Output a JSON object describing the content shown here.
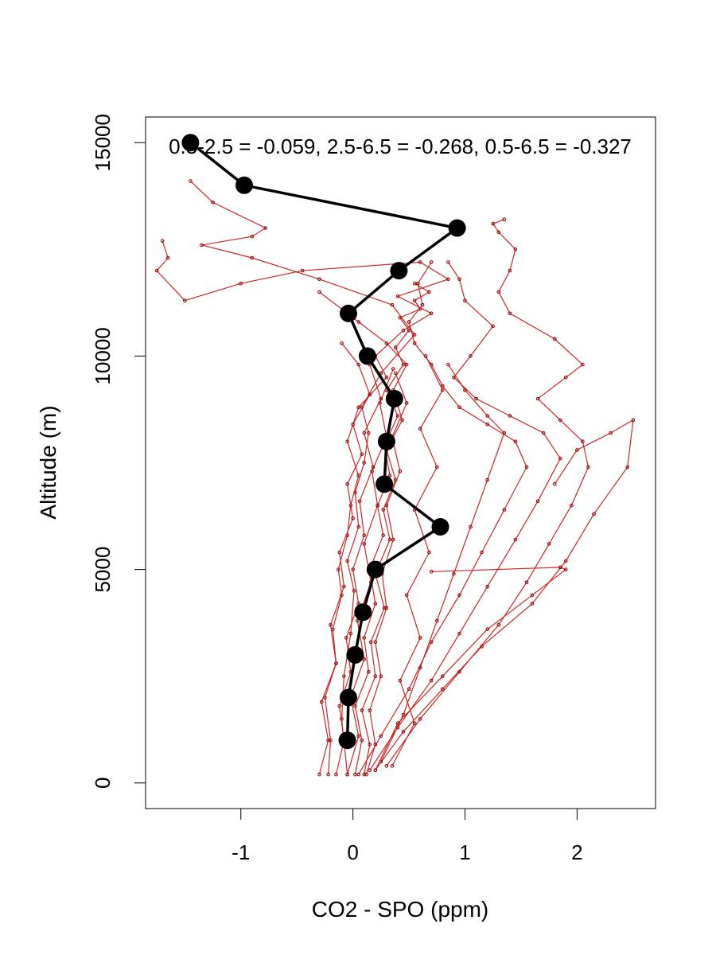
{
  "chart_data": {
    "type": "line",
    "title": "",
    "annotation": "0.5-2.5 = -0.059, 2.5-6.5 = -0.268, 0.5-6.5 = -0.327",
    "xlabel": "CO2 - SPO (ppm)",
    "ylabel": "Altitude (m)",
    "xlim": [
      -1.85,
      2.7
    ],
    "ylim": [
      -600,
      15600
    ],
    "xticks": [
      -1,
      0,
      1,
      2
    ],
    "yticks": [
      0,
      5000,
      10000,
      15000
    ],
    "grid": false,
    "colors": {
      "mean_line": "#000000",
      "profiles": "#8b0000",
      "profiles_light": "#cd2626"
    },
    "mean_profile": {
      "name": "",
      "x": [
        -0.05,
        -0.04,
        0.02,
        0.09,
        0.2,
        0.78,
        0.28,
        0.3,
        0.37,
        0.13,
        -0.04,
        0.41,
        0.93,
        -0.97,
        -1.45
      ],
      "y": [
        1000,
        2000,
        3000,
        4000,
        5000,
        6000,
        7000,
        8000,
        9000,
        10000,
        11000,
        12000,
        13000,
        14000,
        15000
      ]
    },
    "profiles": [
      {
        "x": [
          -0.05,
          -0.1,
          -0.08,
          -0.02,
          0.01,
          -0.05,
          0.05,
          0.02,
          0.1,
          0.14,
          0.08,
          0.25,
          0.55,
          0.35,
          -0.3,
          -0.9,
          -1.35,
          -0.9,
          -0.78,
          -1.25,
          -1.45
        ],
        "y": [
          200,
          1500,
          2500,
          3500,
          4500,
          5200,
          6000,
          6800,
          7500,
          8200,
          8800,
          9600,
          10500,
          11200,
          11800,
          12300,
          12600,
          12800,
          13000,
          13600,
          14100
        ]
      },
      {
        "x": [
          -0.22,
          -0.2,
          -0.25,
          -0.15,
          -0.18,
          -0.1,
          -0.13,
          -0.05,
          -0.02,
          0.05,
          -0.05,
          0.05,
          0.3,
          0.2,
          0.45,
          0.7,
          0.4,
          0.85,
          0.6,
          -0.45,
          -1.0,
          -1.5,
          -1.75,
          -1.65,
          -1.7
        ],
        "y": [
          200,
          1000,
          2000,
          2800,
          3600,
          4400,
          5000,
          5800,
          6500,
          7200,
          8000,
          8800,
          9500,
          10000,
          10600,
          11000,
          11400,
          11800,
          12200,
          12000,
          11700,
          11300,
          12000,
          12300,
          12700
        ]
      },
      {
        "x": [
          0.02,
          0.08,
          0.02,
          0.14,
          0.1,
          0.2,
          0.15,
          0.27,
          0.22,
          0.33,
          0.28,
          0.4,
          0.3,
          0.45,
          0.38,
          0.5,
          0.42,
          0.6,
          0.55,
          0.68,
          0.55
        ],
        "y": [
          200,
          1000,
          1800,
          2600,
          3400,
          4200,
          5000,
          5800,
          6500,
          7200,
          7900,
          8600,
          9200,
          9800,
          10200,
          10600,
          10900,
          11100,
          11300,
          11500,
          11700
        ]
      },
      {
        "x": [
          0.1,
          0.15,
          0.08,
          0.2,
          0.16,
          0.28,
          0.2,
          0.33,
          0.27,
          0.38,
          0.3,
          0.44,
          0.36,
          0.48,
          0.3,
          0.05,
          -0.3
        ],
        "y": [
          200,
          900,
          1700,
          2500,
          3300,
          4100,
          4900,
          5700,
          6400,
          7100,
          7800,
          8500,
          9200,
          9800,
          10300,
          10800,
          11500
        ]
      },
      {
        "x": [
          -0.3,
          -0.22,
          -0.28,
          -0.15,
          -0.2,
          -0.08,
          -0.12,
          0.0,
          -0.05,
          0.08,
          0.0,
          0.15,
          0.05,
          -0.1
        ],
        "y": [
          200,
          1000,
          1900,
          2800,
          3700,
          4600,
          5400,
          6200,
          7000,
          7700,
          8400,
          9100,
          9800,
          10300
        ]
      },
      {
        "x": [
          0.2,
          0.45,
          0.8,
          1.15,
          1.6,
          1.9,
          2.15,
          2.45,
          2.5,
          2.3,
          2.0,
          1.8
        ],
        "y": [
          300,
          1200,
          2200,
          3200,
          4200,
          5200,
          6300,
          7400,
          8500,
          8200,
          7800,
          7000
        ]
      },
      {
        "x": [
          0.3,
          0.6,
          0.95,
          1.3,
          1.55,
          1.75,
          1.95,
          2.1,
          2.05,
          1.85,
          1.65,
          1.9,
          2.05,
          1.8,
          1.4,
          1.3,
          1.4,
          1.45,
          1.3,
          1.25,
          1.35
        ],
        "y": [
          400,
          1500,
          2600,
          3700,
          4700,
          5600,
          6500,
          7400,
          8000,
          8500,
          9000,
          9500,
          9800,
          10400,
          11000,
          11500,
          12000,
          12500,
          12900,
          13100,
          13200
        ]
      },
      {
        "x": [
          0.15,
          0.4,
          0.7,
          0.95,
          1.2,
          1.45,
          1.65,
          1.85,
          1.7,
          1.4,
          1.1,
          0.9,
          1.05,
          1.25,
          1.0,
          0.95,
          0.85
        ],
        "y": [
          300,
          1300,
          2400,
          3500,
          4600,
          5700,
          6600,
          7600,
          8200,
          8600,
          9000,
          9500,
          10000,
          10700,
          11300,
          11800,
          12200
        ]
      },
      {
        "x": [
          0.05,
          0.25,
          0.5,
          0.7,
          0.95,
          1.15,
          1.35,
          1.55,
          1.45,
          1.2,
          0.95,
          0.8,
          0.7,
          0.55,
          0.5,
          0.62,
          0.58,
          0.7
        ],
        "y": [
          200,
          1100,
          2200,
          3300,
          4400,
          5400,
          6400,
          7400,
          8000,
          8400,
          8800,
          9300,
          9800,
          10300,
          10800,
          11200,
          11700,
          12200
        ]
      },
      {
        "x": [
          0.25,
          0.45,
          0.6,
          0.75,
          0.9,
          1.05,
          1.2,
          1.35,
          1.2,
          1.0,
          0.85
        ],
        "y": [
          500,
          1600,
          2700,
          3800,
          4900,
          6000,
          7100,
          8200,
          8600,
          9200,
          9800
        ]
      },
      {
        "x": [
          -0.05,
          0.05,
          -0.02,
          0.1,
          0.04,
          0.16,
          0.1,
          0.22,
          0.17,
          0.3,
          0.24,
          0.36
        ],
        "y": [
          200,
          1100,
          2000,
          2900,
          3800,
          4700,
          5600,
          6500,
          7300,
          8100,
          8900,
          9700
        ]
      },
      {
        "x": [
          0.12,
          0.2,
          0.15,
          0.25,
          0.2,
          0.3,
          0.26,
          0.36,
          0.3,
          0.42,
          0.35,
          0.48,
          0.38
        ],
        "y": [
          200,
          900,
          1700,
          2500,
          3300,
          4100,
          4900,
          5700,
          6500,
          7300,
          8100,
          8900,
          9600
        ]
      },
      {
        "x": [
          -0.15,
          -0.08,
          -0.12,
          -0.02,
          -0.06,
          0.05,
          0.0,
          0.1,
          0.06,
          0.18,
          0.1,
          0.25,
          0.15
        ],
        "y": [
          200,
          1000,
          1800,
          2600,
          3400,
          4200,
          5000,
          5800,
          6600,
          7400,
          8200,
          9000,
          9800
        ]
      },
      {
        "x": [
          0.35,
          0.55,
          0.42,
          0.6,
          0.48,
          0.68,
          0.55,
          0.75,
          0.6,
          0.8,
          0.65
        ],
        "y": [
          400,
          1400,
          2400,
          3400,
          4400,
          5400,
          6400,
          7400,
          8300,
          9200,
          10000
        ]
      },
      {
        "x": [
          0.2,
          0.4,
          0.8,
          1.2,
          1.6,
          1.9,
          1.85,
          0.7
        ],
        "y": [
          300,
          1400,
          2500,
          3600,
          4400,
          5000,
          5050,
          4950
        ]
      }
    ]
  }
}
